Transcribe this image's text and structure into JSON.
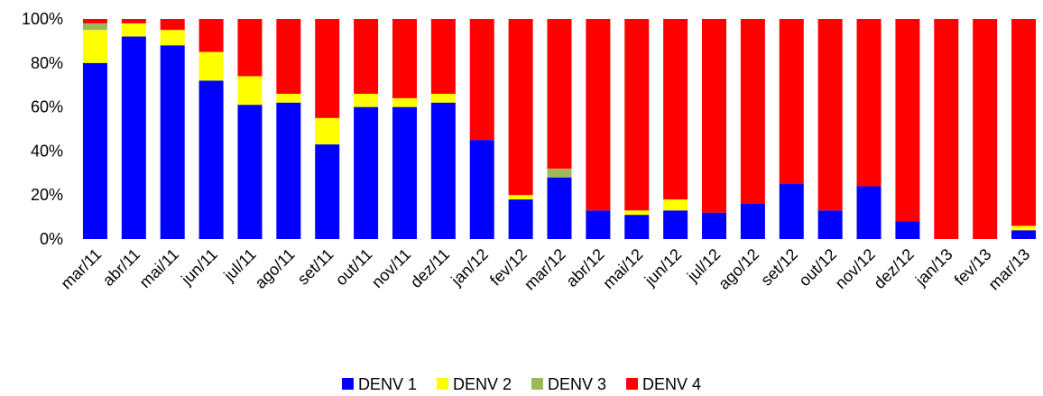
{
  "chart_data": {
    "type": "stacked-bar",
    "categories": [
      "mar/11",
      "abr/11",
      "mai/11",
      "jun/11",
      "jul/11",
      "ago/11",
      "set/11",
      "out/11",
      "nov/11",
      "dez/11",
      "jan/12",
      "fev/12",
      "mar/12",
      "abr/12",
      "mai/12",
      "jun/12",
      "jul/12",
      "ago/12",
      "set/12",
      "out/12",
      "nov/12",
      "dez/12",
      "jan/13",
      "fev/13",
      "mar/13"
    ],
    "series": [
      {
        "name": "DENV 1",
        "color": "#0000ff",
        "values": [
          80,
          92,
          88,
          72,
          61,
          62,
          43,
          60,
          60,
          62,
          45,
          18,
          28,
          13,
          11,
          13,
          12,
          16,
          25,
          13,
          24,
          8,
          0,
          0,
          4
        ]
      },
      {
        "name": "DENV 2",
        "color": "#ffff00",
        "values": [
          15,
          6,
          7,
          13,
          13,
          4,
          12,
          6,
          4,
          4,
          0,
          2,
          0,
          0,
          2,
          5,
          0,
          0,
          0,
          0,
          0,
          0,
          0,
          0,
          2
        ]
      },
      {
        "name": "DENV 3",
        "color": "#9bbb59",
        "values": [
          3,
          0,
          0,
          0,
          0,
          0,
          0,
          0,
          0,
          0,
          0,
          0,
          4,
          0,
          0,
          0,
          0,
          0,
          0,
          0,
          0,
          0,
          0,
          0,
          0
        ]
      },
      {
        "name": "DENV 4",
        "color": "#ff0000",
        "values": [
          2,
          2,
          5,
          15,
          26,
          34,
          45,
          34,
          36,
          34,
          55,
          80,
          68,
          87,
          87,
          82,
          88,
          84,
          75,
          87,
          76,
          92,
          100,
          100,
          94
        ]
      }
    ],
    "ylim": [
      0,
      100
    ],
    "yticks": [
      {
        "value": 0,
        "label": "0%"
      },
      {
        "value": 20,
        "label": "20%"
      },
      {
        "value": 40,
        "label": "40%"
      },
      {
        "value": 60,
        "label": "60%"
      },
      {
        "value": 80,
        "label": "80%"
      },
      {
        "value": 100,
        "label": "100%"
      }
    ],
    "legend": "bottom"
  }
}
